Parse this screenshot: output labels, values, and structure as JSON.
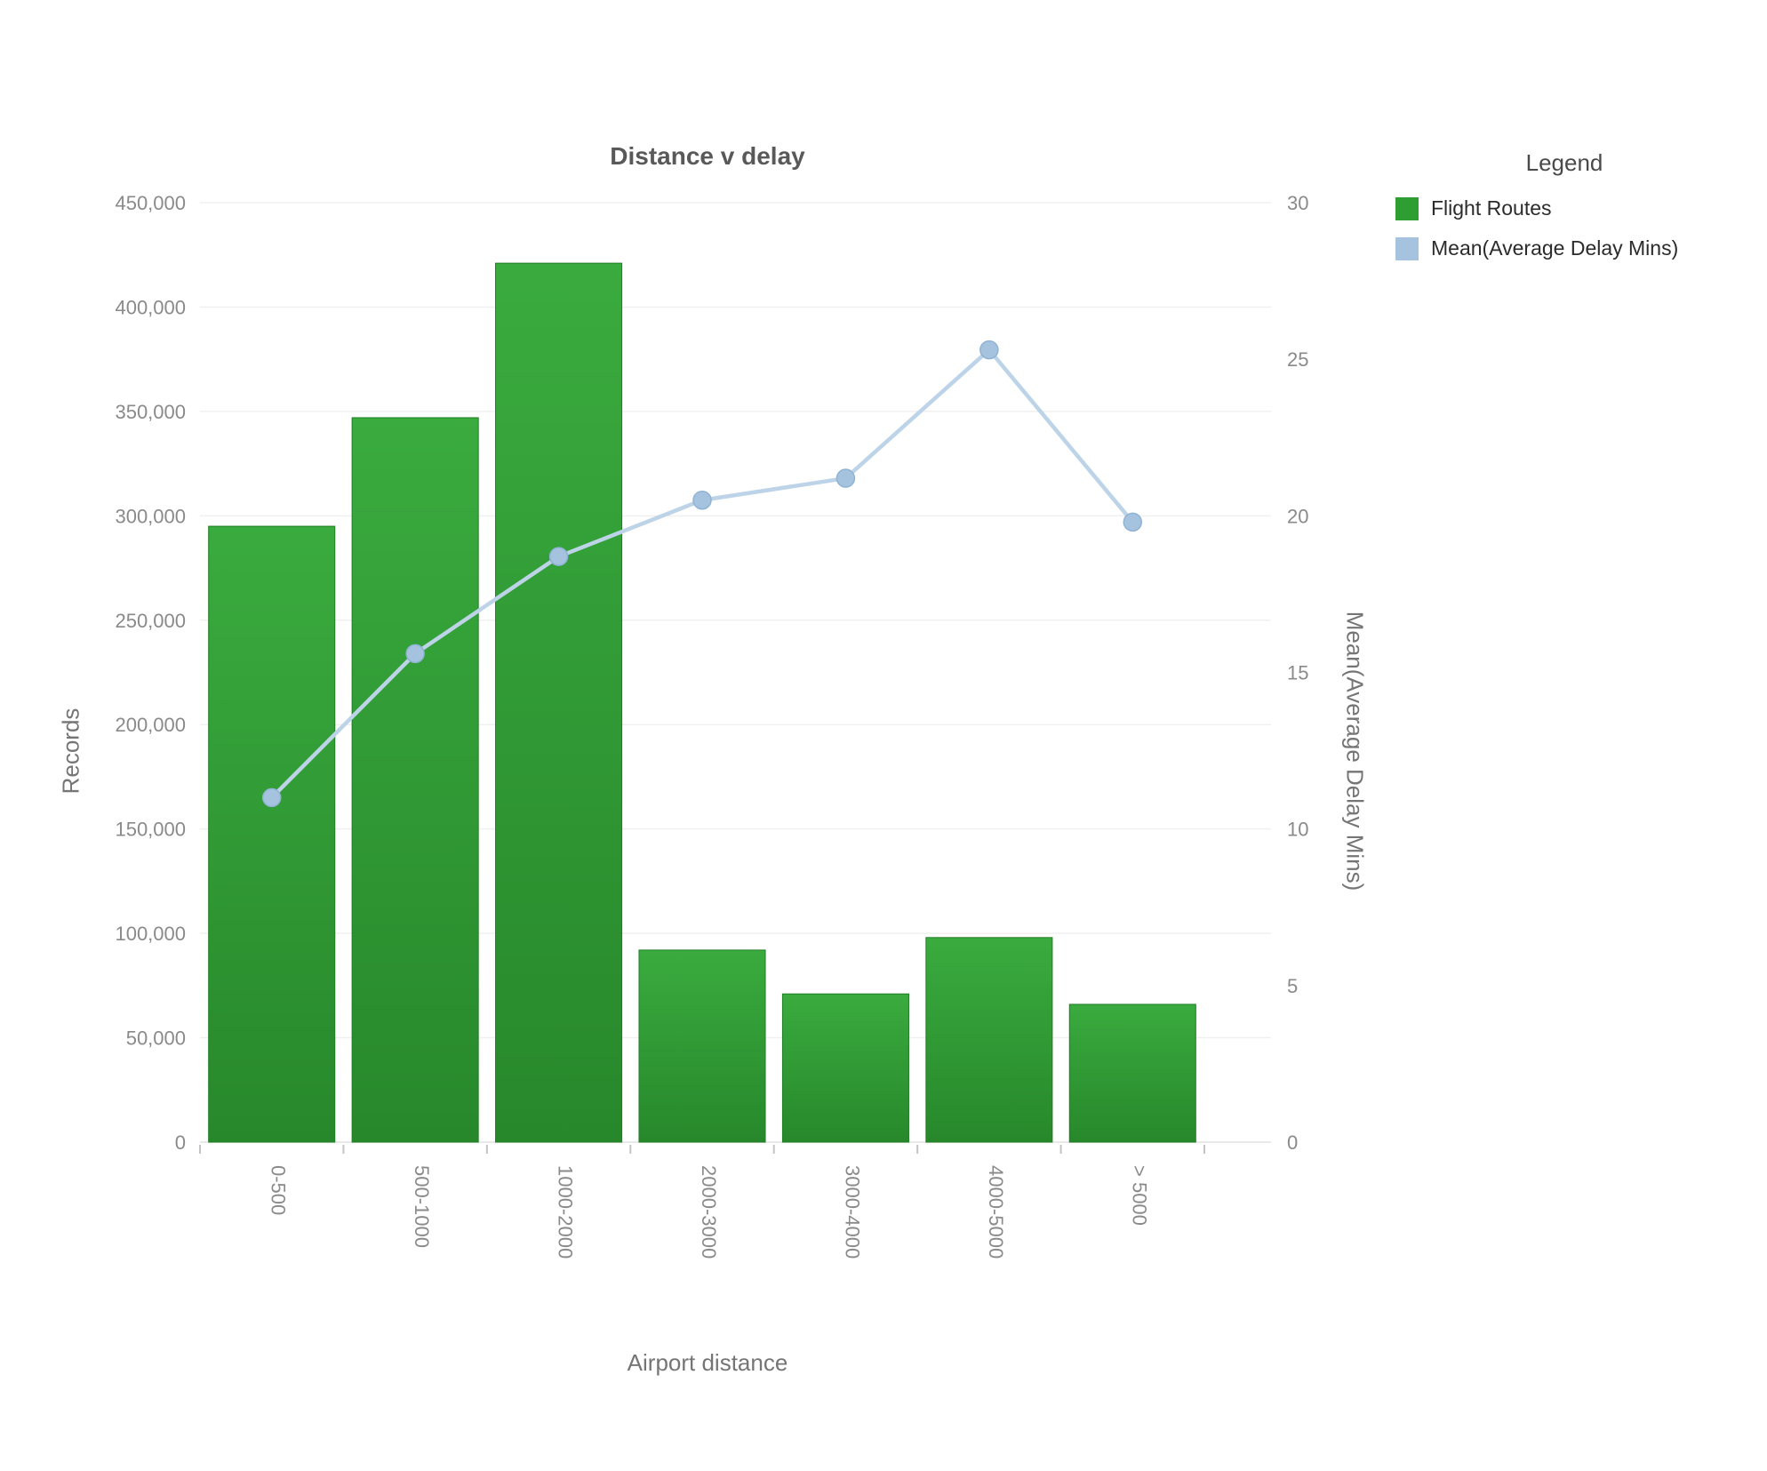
{
  "chart": {
    "title": "Distance v delay",
    "x_title": "Airport distance",
    "y_left_title": "Records",
    "y_right_title": "Mean(Average Delay Mins)",
    "legend_title": "Legend"
  },
  "chart_data": {
    "type": "bar+line",
    "title": "Distance v delay",
    "xlabel": "Airport distance",
    "ylabel_left": "Records",
    "ylabel_right": "Mean(Average Delay Mins)",
    "categories": [
      "0-500",
      "500-1000",
      "1000-2000",
      "2000-3000",
      "3000-4000",
      "4000-5000",
      "> 5000"
    ],
    "series": [
      {
        "name": "Flight Routes",
        "type": "bar",
        "axis": "left",
        "color": "#2f9e32",
        "color_light": "#3aab3e",
        "color_dark": "#27882b",
        "stroke": "#1f7d24",
        "values": [
          295000,
          347000,
          421000,
          92000,
          71000,
          98000,
          66000
        ]
      },
      {
        "name": "Mean(Average Delay Mins)",
        "type": "line",
        "axis": "right",
        "color": "#bdd3e8",
        "marker_color": "#a5c3df",
        "marker_stroke": "#8fb3d3",
        "values": [
          11.0,
          15.6,
          18.7,
          20.5,
          21.2,
          25.3,
          19.8
        ]
      }
    ],
    "y_left": {
      "min": 0,
      "max": 450000,
      "step": 50000
    },
    "y_right": {
      "min": 0,
      "max": 30,
      "step": 5
    },
    "grid": true,
    "legend_position": "top-right",
    "grid_color": "#f0f0f0",
    "zero_line_color": "#e2e2e2",
    "tick_color": "#c4c4c4",
    "tick_label_color": "#8a8a8a"
  }
}
